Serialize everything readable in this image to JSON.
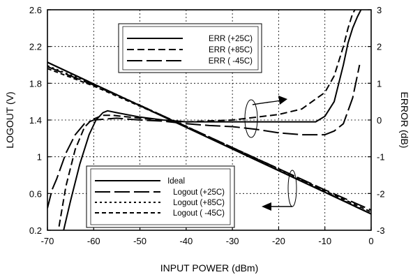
{
  "chart_data": {
    "type": "line",
    "xlabel": "INPUT POWER (dBm)",
    "ylabel_left": "LOGOUT (V)",
    "ylabel_right": "ERROR (dB)",
    "xlim": [
      -70,
      0
    ],
    "ylim_left": [
      0.2,
      2.6
    ],
    "ylim_right": [
      -3,
      3
    ],
    "x_ticks": [
      "-70",
      "-60",
      "-50",
      "-40",
      "-30",
      "-20",
      "-10",
      "0"
    ],
    "y_left_ticks": [
      "0.2",
      "0.6",
      "1",
      "1.4",
      "1.8",
      "2.2",
      "2.6"
    ],
    "y_right_ticks": [
      "-3",
      "-2",
      "-1",
      "0",
      "1",
      "2",
      "3"
    ],
    "grid": true,
    "legend_error": {
      "placement": "top-center",
      "entries": [
        "ERR (+25C)",
        "ERR (+85C)",
        "ERR ( -45C)"
      ]
    },
    "legend_logout": {
      "placement": "bottom-left",
      "entries": [
        "Ideal",
        "Logout (+25C)",
        "Logout (+85C)",
        "Logout ( -45C)"
      ]
    },
    "series": [
      {
        "name": "Ideal",
        "axis": "left",
        "style": "solid",
        "x": [
          -70,
          0
        ],
        "y": [
          2.028,
          0.378
        ]
      },
      {
        "name": "Logout (+25C)",
        "axis": "left",
        "style": "long-dash",
        "x": [
          -70,
          -60,
          -50,
          -40,
          -30,
          -20,
          -10,
          0
        ],
        "y": [
          1.98,
          1.78,
          1.56,
          1.33,
          1.1,
          0.87,
          0.64,
          0.42
        ]
      },
      {
        "name": "Logout (+85C)",
        "axis": "left",
        "style": "dot",
        "x": [
          -70,
          -60,
          -50,
          -40,
          -30,
          -20,
          -10,
          0
        ],
        "y": [
          1.99,
          1.79,
          1.56,
          1.33,
          1.1,
          0.86,
          0.62,
          0.38
        ]
      },
      {
        "name": "Logout ( -45C)",
        "axis": "left",
        "style": "short-dash",
        "x": [
          -70,
          -60,
          -50,
          -40,
          -30,
          -20,
          -10,
          0
        ],
        "y": [
          1.96,
          1.77,
          1.55,
          1.33,
          1.1,
          0.87,
          0.63,
          0.4
        ]
      },
      {
        "name": "ERR (+25C)",
        "axis": "right",
        "style": "solid",
        "x": [
          -66.5,
          -65,
          -63,
          -61,
          -59.5,
          -58,
          -57,
          -55,
          -50,
          -45,
          -40,
          -30,
          -20,
          -12,
          -10,
          -8,
          -6,
          -5,
          -4,
          -3,
          -2.2
        ],
        "y": [
          -3.0,
          -2.2,
          -1.2,
          -0.4,
          0.0,
          0.2,
          0.25,
          0.2,
          0.08,
          0.0,
          -0.05,
          -0.05,
          -0.05,
          -0.05,
          0.1,
          0.5,
          1.5,
          2.1,
          2.5,
          2.8,
          3.0
        ]
      },
      {
        "name": "ERR (+85C)",
        "axis": "right",
        "style": "dash",
        "x": [
          -67.5,
          -66,
          -64,
          -62,
          -60.5,
          -59,
          -58,
          -56,
          -50,
          -45,
          -40,
          -30,
          -20,
          -15,
          -10,
          -8,
          -6,
          -5,
          -4,
          -3.5
        ],
        "y": [
          -2.9,
          -1.8,
          -0.8,
          -0.2,
          0.0,
          0.08,
          0.13,
          0.13,
          0.05,
          0.0,
          -0.05,
          0.0,
          0.15,
          0.3,
          0.75,
          1.2,
          2.0,
          2.5,
          2.9,
          3.0
        ]
      },
      {
        "name": "ERR ( -45C)",
        "axis": "right",
        "style": "long-dash",
        "x": [
          -70,
          -69,
          -68,
          -66,
          -64,
          -62,
          -60,
          -55,
          -50,
          -45,
          -40,
          -35,
          -30,
          -25,
          -20,
          -15,
          -10,
          -8,
          -6,
          -4,
          -2.5
        ],
        "y": [
          -2.4,
          -1.9,
          -1.6,
          -0.9,
          -0.4,
          -0.1,
          0.0,
          0.05,
          0.0,
          -0.03,
          -0.1,
          -0.15,
          -0.18,
          -0.25,
          -0.35,
          -0.4,
          -0.4,
          -0.3,
          -0.1,
          0.6,
          1.5
        ]
      }
    ],
    "annotations": [
      {
        "type": "arrow",
        "direction": "right",
        "points_to_axis": "right"
      },
      {
        "type": "arrow",
        "direction": "left",
        "points_to_axis": "left"
      }
    ]
  }
}
